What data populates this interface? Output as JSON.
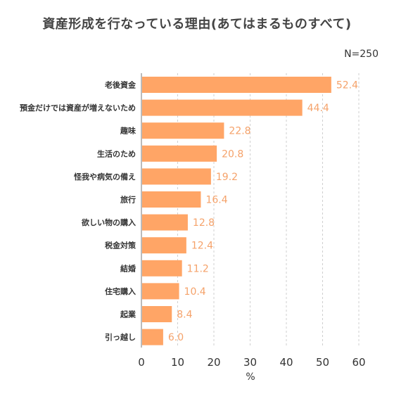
{
  "title": "資産形成を行なっている理由(あてはまるものすべて)",
  "sample_note": "N=250",
  "colors": {
    "bar": "#ffa566",
    "value_label": "#f5a26a",
    "grid": "#cfcfcf",
    "axis": "#bbbbbb"
  },
  "chart_data": {
    "type": "bar",
    "orientation": "horizontal",
    "title": "資産形成を行なっている理由(あてはまるものすべて)",
    "xlabel": "%",
    "ylabel": "",
    "xlim": [
      0,
      65
    ],
    "xticks": [
      0,
      10,
      20,
      30,
      40,
      50,
      60
    ],
    "grid": true,
    "categories": [
      "老後資金",
      "預金だけでは資産が増えないため",
      "趣味",
      "生活のため",
      "怪我や病気の備え",
      "旅行",
      "欲しい物の購入",
      "税金対策",
      "結婚",
      "住宅購入",
      "起業",
      "引っ越し"
    ],
    "values": [
      52.4,
      44.4,
      22.8,
      20.8,
      19.2,
      16.4,
      12.8,
      12.4,
      11.2,
      10.4,
      8.4,
      6.0
    ],
    "value_labels": [
      "52.4",
      "44.4",
      "22.8",
      "20.8",
      "19.2",
      "16.4",
      "12.8",
      "12.4",
      "11.2",
      "10.4",
      "8.4",
      "6.0"
    ]
  }
}
